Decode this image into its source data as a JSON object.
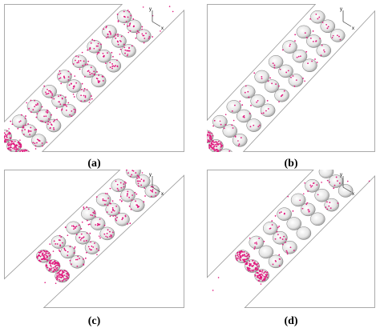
{
  "panels": [
    {
      "label": "(a)",
      "axes": [
        "y",
        "x"
      ]
    },
    {
      "label": "(b)",
      "axes": [
        "y",
        "x"
      ]
    },
    {
      "label": "(c)",
      "axes": [
        "y",
        "x"
      ]
    },
    {
      "label": "(d)",
      "axes": [
        "y",
        "x"
      ]
    }
  ]
}
